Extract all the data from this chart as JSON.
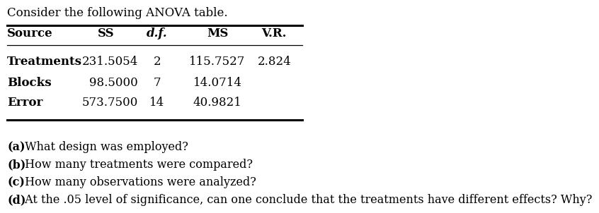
{
  "title": "Consider the following ANOVA table.",
  "col_headers": [
    "Source",
    "SS",
    "d.f.",
    "MS",
    "V.R."
  ],
  "rows": [
    [
      "Treatments",
      "231.5054",
      "2",
      "115.7527",
      "2.824"
    ],
    [
      "Blocks",
      "98.5000",
      "7",
      "14.0714",
      ""
    ],
    [
      "Error",
      "573.7500",
      "14",
      "40.9821",
      ""
    ]
  ],
  "question_labels": [
    "(a)",
    "(b)",
    "(c)",
    "(d)"
  ],
  "question_texts": [
    " What design was employed?",
    " How many treatments were compared?",
    " How many observations were analyzed?",
    " At the .05 level of significance, can one conclude that the treatments have different effects? Why?"
  ],
  "bg_color": "#ffffff",
  "text_color": "#000000",
  "title_fontsize": 12,
  "header_fontsize": 12,
  "data_fontsize": 12,
  "question_fontsize": 11.5
}
